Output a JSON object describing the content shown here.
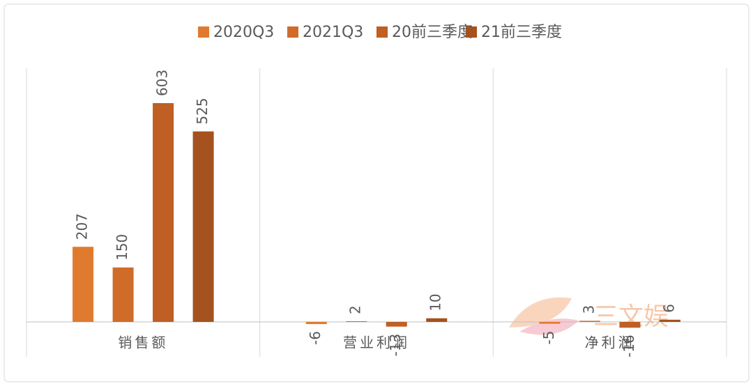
{
  "chart_data": {
    "type": "bar",
    "categories": [
      "销售额",
      "营业利润",
      "净利润"
    ],
    "series": [
      {
        "name": "2020Q3",
        "color": "#e07a2e",
        "values": [
          207,
          -6,
          -5
        ]
      },
      {
        "name": "2021Q3",
        "color": "#d06c2a",
        "values": [
          150,
          2,
          3
        ]
      },
      {
        "name": "20前三季度",
        "color": "#bf5f24",
        "values": [
          603,
          -13,
          -16
        ]
      },
      {
        "name": "21前三季度",
        "color": "#a5521f",
        "values": [
          525,
          10,
          6
        ]
      }
    ],
    "legend": "top",
    "watermark": "三文娱"
  }
}
